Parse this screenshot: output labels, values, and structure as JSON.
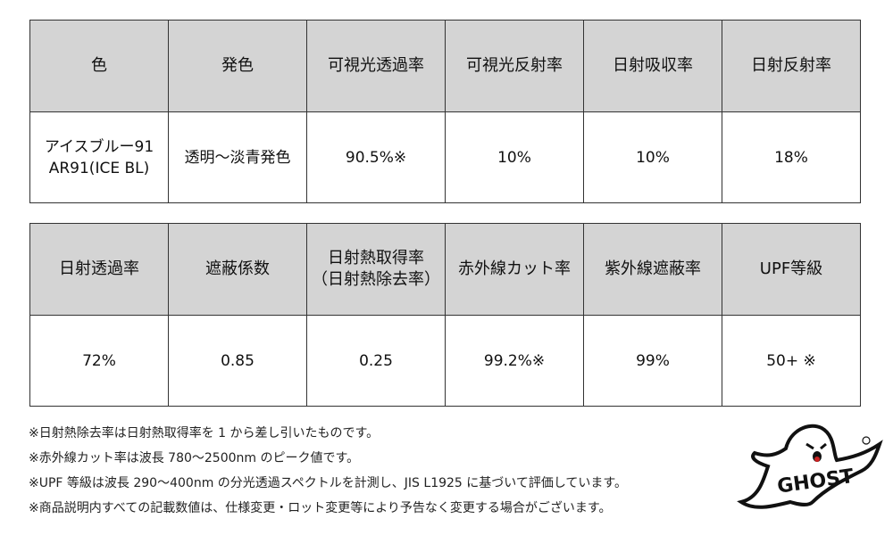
{
  "table1": {
    "headers": [
      "色",
      "発色",
      "可視光透過率",
      "可視光反射率",
      "日射吸収率",
      "日射反射率"
    ],
    "values": [
      "アイスブルー91\nAR91(ICE BL)",
      "透明〜淡青発色",
      "90.5%※",
      "10%",
      "10%",
      "18%"
    ]
  },
  "table2": {
    "headers": [
      "日射透過率",
      "遮蔽係数",
      "日射熱取得率\n（日射熱除去率）",
      "赤外線カット率",
      "紫外線遮蔽率",
      "UPF等級"
    ],
    "values": [
      "72%",
      "0.85",
      "0.25",
      "99.2%※",
      "99%",
      "50+ ※"
    ]
  },
  "notes": [
    "※日射熱除去率は日射熱取得率を 1 から差し引いたものです。",
    "※赤外線カット率は波長 780〜2500nm のピーク値です。",
    "※UPF 等級は波長 290〜400nm の分光透過スペクトルを計測し、JIS L1925 に基づいて評価しています。",
    "※商品説明内すべての記載数値は、仕様変更・ロット変更等により予告なく変更する場合がございます。"
  ],
  "logo": {
    "text": "GHOST",
    "icon": "ghost-logo-icon"
  }
}
